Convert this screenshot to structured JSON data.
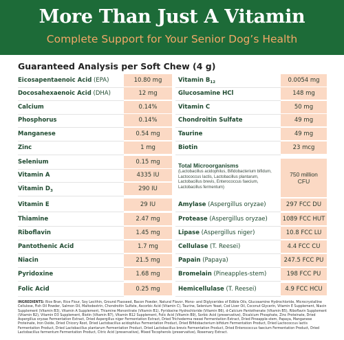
{
  "banner": {
    "title": "More Than Just A Vitamin",
    "subtitle": "Complete Support for Your Senior Dog’s Health"
  },
  "section_title": "Guaranteed Analysis per Soft Chew (4 g)",
  "left_rows": [
    {
      "name": "Eicosapentaenoic Acid",
      "qual": " (EPA)",
      "value": "10.80 mg"
    },
    {
      "name": "Docosahexaenoic Acid",
      "qual": " (DHA)",
      "value": "12 mg"
    },
    {
      "name": "Calcium",
      "qual": "",
      "value": "0.14%"
    },
    {
      "name": "Phosphorus",
      "qual": "",
      "value": "0.14%"
    },
    {
      "name": "Manganese",
      "qual": "",
      "value": "0.54 mg"
    },
    {
      "name": "Zinc",
      "qual": "",
      "value": "1 mg"
    },
    {
      "name": "Selenium",
      "qual": "",
      "value": "0.15 mg"
    },
    {
      "name": "Vitamin A",
      "qual": "",
      "value": "4335 IU"
    },
    {
      "name": "Vitamin D",
      "sub": "3",
      "qual": "",
      "value": "290 IU"
    },
    {
      "name": "Vitamin E",
      "qual": "",
      "value": "29 IU"
    },
    {
      "name": "Thiamine",
      "qual": "",
      "value": "2.47 mg"
    },
    {
      "name": "Riboflavin",
      "qual": "",
      "value": "1.45 mg"
    },
    {
      "name": "Pantothenic Acid",
      "qual": "",
      "value": "1.7 mg"
    },
    {
      "name": "Niacin",
      "qual": "",
      "value": "21.5 mg"
    },
    {
      "name": "Pyridoxine",
      "qual": "",
      "value": "1.68 mg"
    },
    {
      "name": "Folic Acid",
      "qual": "",
      "value": "0.25 mg"
    }
  ],
  "right_rows_top": [
    {
      "name": "Vitamin B",
      "sub": "12",
      "qual": "",
      "value": "0.0054 mg"
    },
    {
      "name": "Glucosamine HCl",
      "qual": "",
      "value": "148 mg"
    },
    {
      "name": "Vitamin C",
      "qual": "",
      "value": "50 mg"
    },
    {
      "name": "Chondroitin Sulfate",
      "qual": "",
      "value": "49 mg"
    },
    {
      "name": "Taurine",
      "qual": "",
      "value": "49 mg"
    },
    {
      "name": "Biotin",
      "qual": "",
      "value": "23 mcg"
    }
  ],
  "microorganisms": {
    "name": "Total Microorganisms",
    "description": "(Lactobacillus acidophilus, Bifidobacterium bifidum, Lactococcus lactis, Lactobacillus plantarum, Lactobacillus brevis, Enterococcus faecium, Lactobacillus fermentum)",
    "value": "750 million CFU"
  },
  "right_rows_bottom": [
    {
      "name": "Amylase",
      "qual": " (Aspergillus oryzae)",
      "value": "297 FCC DU"
    },
    {
      "name": "Protease",
      "qual": " (Aspergillus oryzae)",
      "value": "1089 FCC HUT"
    },
    {
      "name": "Lipase",
      "qual": " (Aspergillus niger)",
      "value": "10.8 FCC LU"
    },
    {
      "name": "Cellulase",
      "qual": " (T. Reesei)",
      "value": "4.4 FCC CU"
    },
    {
      "name": "Papain",
      "qual": " (Papaya)",
      "value": "247.5 FCC PU"
    },
    {
      "name": "Bromelain",
      "qual": " (Pineapples-stem)",
      "value": "198 FCC PU"
    },
    {
      "name": "Hemicellulase",
      "qual": " (T. Reesei)",
      "value": "4.9 FCC HCU"
    }
  ],
  "ingredients": {
    "label": "INGREDIENTS:",
    "text": " Rice Bran, Rice Flour, Soy Lecithin, Ground Flaxseed, Bacon Powder, Natural Flavor, Mono- and Diglycerides of Edible Oils, Glucosamine Hydrochloride, Microcrystalline Cellulose, Fish Oil Powder, Salmon Oil, Maltodextrin, Chondroitin Sulfate, Ascorbic Acid (Vitamin C), Taurine, Selenium Yeast, Cod Liver Oil, Coconut Glycerin, Vitamin E Supplement, Niacin Supplement (Vitamin B3), Vitamin A Supplement, Thiamine Mononitrate (Vitamin B1), Pyridoxine Hydrochloride (Vitamin B6), d-Calcium Pantothenate (Vitamin B5), Riboflavin Supplement (Vitamin B2), Vitamin D3 Supplement, Biotin (Vitamin B7), Vitamin B12 Supplement, Folic Acid (Vitamin B9), Sorbic Acid (preservative), Dicalcium Phosphate, Zinc Proteinate, Dried Aspergillus oryzae Fermentation Extract, Dried Aspergillus niger Fermentation Extract, Dried Trichoderma reesei Fermentation Extract, Dried Pineapple-stem, Papaya, Manganese Proteinate, Iron Oxide, Dried Chicory Root, Dried Lactobacillus acidophilus Fermentation Product, Dried Bifidobacterium bifidum Fermentation Product, Dried Lactococcus lactis Fermentation Product, Dried Lactobacillus plantarum Fermentation Product, Dried Lactobacillus brevis Fermentation Product, Dried Enterococcus faecium Fermentation Product, Dried Lactobacillus fermentum Fermentation Product, Citric Acid (preservative), Mixed Tocopherols (preservative), Rosemary Extract."
  },
  "colors": {
    "banner": "#1d6b38",
    "subtitle": "#f3a867",
    "value_cell": "#fbd9c4",
    "label_text": "#1f4a30"
  }
}
